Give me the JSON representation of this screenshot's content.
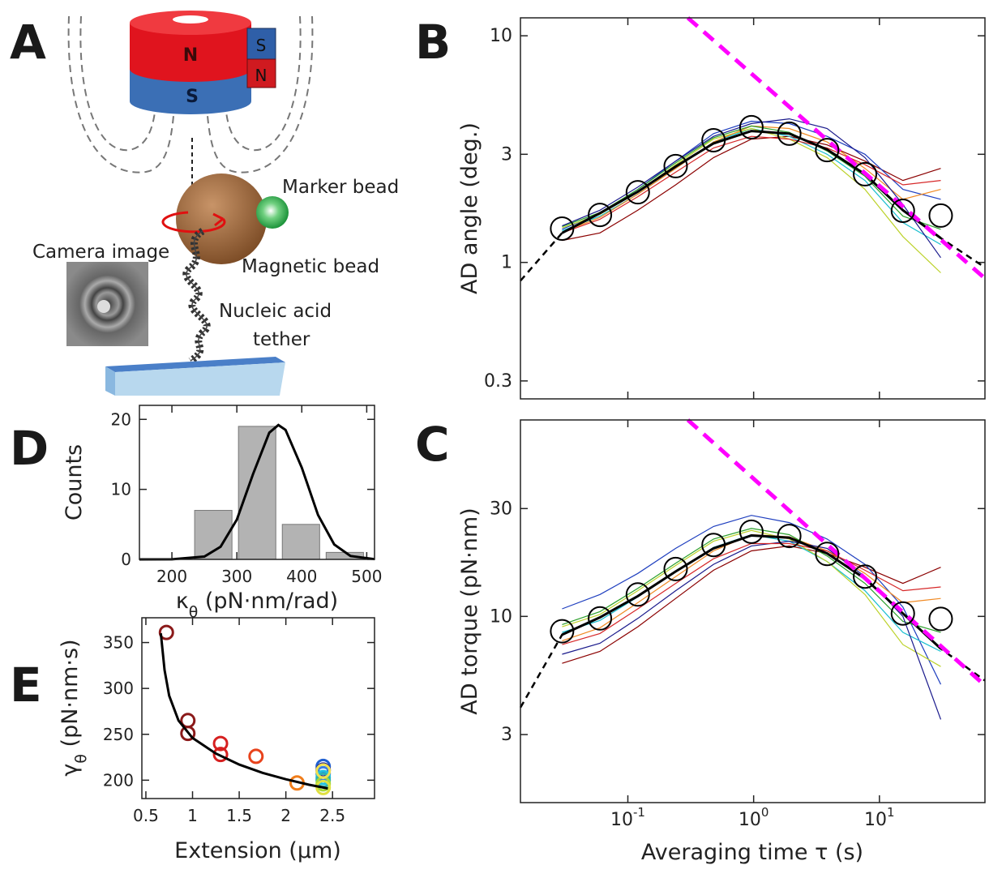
{
  "diagram": {
    "panel": "A",
    "labels": [
      "N",
      "S",
      "S",
      "N",
      "Marker bead",
      "Camera image",
      "Magnetic bead",
      "Nucleic acid",
      "tether"
    ]
  },
  "chart_data": [
    {
      "type": "line",
      "panel": "B",
      "ylabel": "AD angle (deg.)",
      "xscale": "log",
      "yscale": "log",
      "xlim": [
        0.014,
        69
      ],
      "ylim": [
        0.25,
        12
      ],
      "xticks": [
        0.1,
        1,
        10
      ],
      "show_xtick_labels": false,
      "yticks": [
        0.3,
        1,
        3,
        10
      ],
      "series": [
        {
          "style": "thin",
          "color": "#8b0000",
          "x": [
            0.03,
            0.06,
            0.12,
            0.24,
            0.48,
            0.96,
            1.92,
            3.84,
            7.68,
            15.36,
            30.72
          ],
          "values": [
            1.25,
            1.35,
            1.7,
            2.2,
            2.9,
            3.5,
            3.6,
            3.3,
            2.8,
            2.3,
            2.6
          ]
        },
        {
          "style": "thin",
          "color": "#1f3fbf",
          "x": [
            0.03,
            0.06,
            0.12,
            0.24,
            0.48,
            0.96,
            1.92,
            3.84,
            7.68,
            15.36,
            30.72
          ],
          "values": [
            1.4,
            1.65,
            2.1,
            2.8,
            3.7,
            4.2,
            4.1,
            3.6,
            3.0,
            2.1,
            1.9
          ]
        },
        {
          "style": "thin",
          "color": "#17becf",
          "x": [
            0.03,
            0.06,
            0.12,
            0.24,
            0.48,
            0.96,
            1.92,
            3.84,
            7.68,
            15.36,
            30.72
          ],
          "values": [
            1.38,
            1.6,
            2.0,
            2.6,
            3.4,
            3.9,
            3.6,
            3.0,
            2.3,
            1.5,
            1.2
          ]
        },
        {
          "style": "thin",
          "color": "#bcd22a",
          "x": [
            0.03,
            0.06,
            0.12,
            0.24,
            0.48,
            0.96,
            1.92,
            3.84,
            7.68,
            15.36,
            30.72
          ],
          "values": [
            1.42,
            1.63,
            2.05,
            2.7,
            3.5,
            3.9,
            3.5,
            2.9,
            2.1,
            1.3,
            0.9
          ]
        },
        {
          "style": "thin",
          "color": "#f08a24",
          "x": [
            0.03,
            0.06,
            0.12,
            0.24,
            0.48,
            0.96,
            1.92,
            3.84,
            7.68,
            15.36,
            30.72
          ],
          "values": [
            1.36,
            1.58,
            2.0,
            2.6,
            3.4,
            4.0,
            3.9,
            3.4,
            2.6,
            1.9,
            2.1
          ]
        },
        {
          "style": "thin",
          "color": "#2ca02c",
          "x": [
            0.03,
            0.06,
            0.12,
            0.24,
            0.48,
            0.96,
            1.92,
            3.84,
            7.68,
            15.36,
            30.72
          ],
          "values": [
            1.44,
            1.66,
            2.1,
            2.75,
            3.55,
            4.0,
            3.75,
            3.1,
            2.4,
            1.6,
            1.4
          ]
        },
        {
          "style": "thin",
          "color": "#1a1a8c",
          "x": [
            0.03,
            0.06,
            0.12,
            0.24,
            0.48,
            0.96,
            1.92,
            3.84,
            7.68,
            15.36,
            30.72
          ],
          "values": [
            1.45,
            1.7,
            2.15,
            2.8,
            3.6,
            4.1,
            4.3,
            3.9,
            2.9,
            1.8,
            1.05
          ]
        },
        {
          "style": "thin",
          "color": "#d62728",
          "x": [
            0.03,
            0.06,
            0.12,
            0.24,
            0.48,
            0.96,
            1.92,
            3.84,
            7.68,
            15.36,
            30.72
          ],
          "values": [
            1.35,
            1.55,
            1.95,
            2.5,
            3.2,
            3.6,
            3.5,
            3.2,
            2.7,
            2.2,
            2.3
          ]
        },
        {
          "style": "dashed",
          "color": "#000000",
          "x": [
            0.014,
            0.03,
            0.06,
            0.12,
            0.24,
            0.48,
            0.96,
            1.92,
            3.84,
            7.68,
            15.36,
            30.72,
            69
          ],
          "values": [
            0.83,
            1.35,
            1.65,
            2.05,
            2.65,
            3.35,
            3.8,
            3.7,
            3.15,
            2.45,
            1.7,
            1.28,
            0.95
          ]
        },
        {
          "style": "fit",
          "color": "#000000",
          "x": [
            0.03,
            0.06,
            0.12,
            0.24,
            0.48,
            0.96,
            1.92,
            3.84,
            7.68,
            15.36,
            30.72
          ],
          "values": [
            1.35,
            1.65,
            2.05,
            2.65,
            3.35,
            3.8,
            3.7,
            3.15,
            2.45,
            1.7,
            1.28
          ]
        },
        {
          "style": "asymptote",
          "color": "#ff00ff",
          "x": [
            0.3,
            69
          ],
          "values": [
            12,
            0.85
          ]
        },
        {
          "style": "circles",
          "color": "#000000",
          "x": [
            0.03,
            0.06,
            0.12,
            0.24,
            0.48,
            0.96,
            1.92,
            3.84,
            7.68,
            15.36,
            30.72
          ],
          "values": [
            1.41,
            1.62,
            2.04,
            2.66,
            3.46,
            3.95,
            3.7,
            3.13,
            2.45,
            1.69,
            1.61
          ]
        }
      ]
    },
    {
      "type": "line",
      "panel": "C",
      "ylabel": "AD torque (pN·nm)",
      "xlabel": "Averaging time τ (s)",
      "xscale": "log",
      "yscale": "log",
      "xlim": [
        0.014,
        69
      ],
      "ylim": [
        1.5,
        74
      ],
      "xticks": [
        {
          "value": 0.1,
          "label": "10",
          "exponent": "-1"
        },
        {
          "value": 1,
          "label": "10",
          "exponent": "0"
        },
        {
          "value": 10,
          "label": "10",
          "exponent": "1"
        }
      ],
      "show_xtick_labels": true,
      "yticks": [
        3,
        10,
        30
      ],
      "series": [
        {
          "style": "thin",
          "color": "#8b0000",
          "x": [
            0.03,
            0.06,
            0.12,
            0.24,
            0.48,
            0.96,
            1.92,
            3.84,
            7.68,
            15.36,
            30.72
          ],
          "values": [
            6.2,
            7.0,
            9.0,
            12,
            16,
            19.5,
            20.5,
            19,
            16.5,
            14,
            16.5
          ]
        },
        {
          "style": "thin",
          "color": "#1f3fbf",
          "x": [
            0.03,
            0.06,
            0.12,
            0.24,
            0.48,
            0.96,
            1.92,
            3.84,
            7.68,
            15.36,
            30.72
          ],
          "values": [
            10.8,
            12.5,
            15.5,
            20,
            25,
            28,
            26,
            22,
            17,
            11,
            5
          ]
        },
        {
          "style": "thin",
          "color": "#17becf",
          "x": [
            0.03,
            0.06,
            0.12,
            0.24,
            0.48,
            0.96,
            1.92,
            3.84,
            7.68,
            15.36,
            30.72
          ],
          "values": [
            8.5,
            9.6,
            12.2,
            15.8,
            20.2,
            23,
            21.5,
            17.5,
            13,
            8.5,
            7
          ]
        },
        {
          "style": "thin",
          "color": "#bcd22a",
          "x": [
            0.03,
            0.06,
            0.12,
            0.24,
            0.48,
            0.96,
            1.92,
            3.84,
            7.68,
            15.36,
            30.72
          ],
          "values": [
            9,
            10.2,
            13,
            16.8,
            21.5,
            24,
            22,
            17.5,
            12.5,
            7.5,
            6
          ]
        },
        {
          "style": "thin",
          "color": "#f08a24",
          "x": [
            0.03,
            0.06,
            0.12,
            0.24,
            0.48,
            0.96,
            1.92,
            3.84,
            7.68,
            15.36,
            30.72
          ],
          "values": [
            7.8,
            8.9,
            11.5,
            15,
            19.5,
            23,
            22.5,
            19.5,
            15.5,
            11.5,
            12
          ]
        },
        {
          "style": "thin",
          "color": "#2ca02c",
          "x": [
            0.03,
            0.06,
            0.12,
            0.24,
            0.48,
            0.96,
            1.92,
            3.84,
            7.68,
            15.36,
            30.72
          ],
          "values": [
            9.2,
            10.5,
            13.3,
            17.2,
            22,
            24.5,
            23,
            18.5,
            14,
            9.5,
            8.5
          ]
        },
        {
          "style": "thin",
          "color": "#1a1a8c",
          "x": [
            0.03,
            0.06,
            0.12,
            0.24,
            0.48,
            0.96,
            1.92,
            3.84,
            7.68,
            15.36,
            30.72
          ],
          "values": [
            6.8,
            7.6,
            9.8,
            13,
            17,
            20.5,
            21.5,
            20,
            15,
            10,
            3.5
          ]
        },
        {
          "style": "thin",
          "color": "#d62728",
          "x": [
            0.03,
            0.06,
            0.12,
            0.24,
            0.48,
            0.96,
            1.92,
            3.84,
            7.68,
            15.36,
            30.72
          ],
          "values": [
            7.5,
            8.4,
            10.8,
            14,
            18,
            21,
            21,
            19.5,
            16,
            13,
            13.5
          ]
        },
        {
          "style": "dashed",
          "color": "#000000",
          "x": [
            0.014,
            0.03,
            0.06,
            0.12,
            0.24,
            0.48,
            0.96,
            1.92,
            3.84,
            7.68,
            15.36,
            30.72,
            69
          ],
          "values": [
            3.95,
            8.3,
            9.9,
            12.3,
            15.8,
            20,
            22.8,
            22.3,
            19,
            14.7,
            10.3,
            7.2,
            5.2
          ]
        },
        {
          "style": "fit",
          "color": "#000000",
          "x": [
            0.03,
            0.06,
            0.12,
            0.24,
            0.48,
            0.96,
            1.92,
            3.84,
            7.68,
            15.36,
            30.72
          ],
          "values": [
            8.3,
            9.9,
            12.3,
            15.8,
            20,
            22.8,
            22.3,
            19,
            14.7,
            10.3,
            7.2
          ]
        },
        {
          "style": "asymptote",
          "color": "#ff00ff",
          "x": [
            0.3,
            69
          ],
          "values": [
            74,
            4.95
          ]
        },
        {
          "style": "circles",
          "color": "#000000",
          "x": [
            0.03,
            0.06,
            0.12,
            0.24,
            0.48,
            0.96,
            1.92,
            3.84,
            7.68,
            15.36,
            30.72
          ],
          "values": [
            8.6,
            9.8,
            12.5,
            16.2,
            20.7,
            23.7,
            22.7,
            18.9,
            15.0,
            10.3,
            9.75
          ]
        }
      ]
    },
    {
      "type": "histogram",
      "panel": "D",
      "ylabel": "Counts",
      "xlabel": [
        "κ",
        "θ",
        " (pN·nm/rad)"
      ],
      "xlim": [
        150,
        512
      ],
      "ylim": [
        0,
        22
      ],
      "xticks": [
        200,
        300,
        400,
        500
      ],
      "yticks": [
        0,
        10,
        20
      ],
      "bins": [
        230,
        297.5,
        365,
        432.5,
        500
      ],
      "values": [
        7,
        19,
        5,
        1
      ],
      "color": "#b3b3b3",
      "curve": {
        "color": "#000000",
        "x": [
          150,
          200,
          250,
          275,
          300,
          325,
          350,
          364,
          375,
          400,
          425,
          450,
          475,
          512
        ],
        "values": [
          0.0,
          0.006,
          0.4,
          1.81,
          5.68,
          12.2,
          18.1,
          19.2,
          18.5,
          13.1,
          6.35,
          2.13,
          0.49,
          0.03
        ]
      }
    },
    {
      "type": "scatter",
      "panel": "E",
      "ylabel": [
        "γ",
        "θ",
        " (pN·nm·s)"
      ],
      "xlabel": "Extension (µm)",
      "xlim": [
        0.457,
        2.95
      ],
      "ylim": [
        180,
        377
      ],
      "xticks": [
        0.5,
        1,
        1.5,
        2,
        2.5
      ],
      "yticks": [
        200,
        250,
        300,
        350
      ],
      "x": [
        0.72,
        0.95,
        0.95,
        1.3,
        1.3,
        1.68,
        2.12,
        2.4,
        2.4,
        2.4,
        2.4,
        2.4,
        2.4,
        2.4,
        2.4
      ],
      "values": [
        361,
        265,
        251,
        240,
        228,
        226,
        197,
        215,
        211,
        207,
        203,
        200,
        196,
        192,
        210
      ],
      "colors": [
        "#8b1a1a",
        "#8b1a1a",
        "#8b1a1a",
        "#d62020",
        "#d62020",
        "#e8431c",
        "#f07d1a",
        "#2060d0",
        "#1a1a8c",
        "#3a7fe0",
        "#20c0e0",
        "#30b0b0",
        "#a8d838",
        "#e0e040",
        "#f0e050"
      ],
      "curve": {
        "color": "#000000",
        "x": [
          0.66,
          0.7,
          0.75,
          0.85,
          1.0,
          1.25,
          1.5,
          1.75,
          2.0,
          2.25,
          2.45
        ],
        "values": [
          360,
          320,
          292,
          265,
          246,
          229,
          217,
          208,
          201,
          195,
          191
        ]
      }
    }
  ]
}
